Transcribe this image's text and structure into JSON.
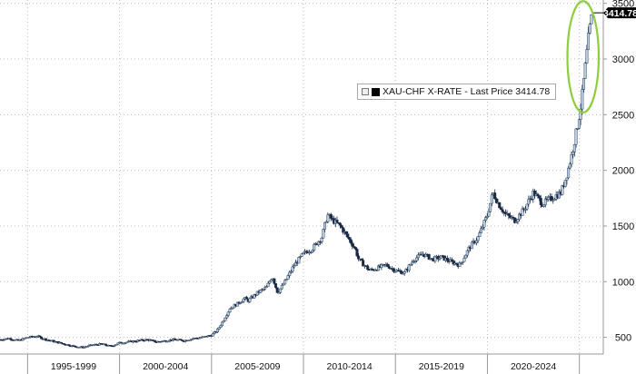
{
  "chart_data": {
    "type": "candlestick",
    "title": "",
    "xlabel": "",
    "ylabel": "",
    "x_range": [
      1993.5,
      2026.3
    ],
    "ylim": [
      350,
      3530
    ],
    "y_ticks": [
      500,
      1000,
      1500,
      2000,
      2500,
      3000,
      3500
    ],
    "y_tick_labels": [
      "500",
      "1000",
      "1500",
      "2000",
      "2500",
      "3000",
      "3500"
    ],
    "x_tick_labels": [
      "1995-1999",
      "2000-2004",
      "2005-2009",
      "2010-2014",
      "2015-2019",
      "2020-2024"
    ],
    "x_tick_spans": [
      [
        1995,
        2000
      ],
      [
        2000,
        2005
      ],
      [
        2005,
        2010
      ],
      [
        2010,
        2015
      ],
      [
        2015,
        2020
      ],
      [
        2020,
        2025
      ]
    ],
    "grid": true,
    "legend": {
      "position": "top-right",
      "label": "XAU-CHF X-RATE - Last Price 3414.78"
    },
    "last_price_label": "3414.78",
    "last_price": 3414.78,
    "highlight": {
      "type": "ellipse",
      "color": "#8fcd3c",
      "x_center": 2025.2,
      "y_center": 3020,
      "x_half_width": 0.85,
      "y_half_height": 500
    },
    "colors": {
      "up": "#b7cde0",
      "down": "#1a2a44",
      "grid": "#bbbbbb",
      "axis": "#999999",
      "text": "#111111"
    },
    "series": [
      {
        "name": "XAU-CHF X-RATE",
        "x": [
          1993.5,
          1994,
          1994.5,
          1995,
          1995.5,
          1996,
          1996.5,
          1997,
          1997.5,
          1998,
          1998.5,
          1999,
          1999.5,
          2000,
          2000.5,
          2001,
          2001.5,
          2002,
          2002.5,
          2003,
          2003.5,
          2004,
          2004.5,
          2005,
          2005.3,
          2005.6,
          2006,
          2006.4,
          2006.8,
          2007,
          2007.5,
          2008,
          2008.3,
          2008.6,
          2009,
          2009.5,
          2010,
          2010.5,
          2011,
          2011.3,
          2011.6,
          2012,
          2012.4,
          2012.8,
          2013,
          2013.3,
          2013.6,
          2014,
          2014.5,
          2015,
          2015.5,
          2016,
          2016.5,
          2017,
          2017.5,
          2018,
          2018.5,
          2019,
          2019.5,
          2020,
          2020.3,
          2020.6,
          2021,
          2021.5,
          2022,
          2022.5,
          2023,
          2023.5,
          2024,
          2024.3,
          2024.6,
          2024.9,
          2025.1,
          2025.3,
          2025.5,
          2025.7
        ],
        "close": [
          480,
          490,
          470,
          500,
          510,
          480,
          460,
          440,
          420,
          410,
          430,
          440,
          420,
          450,
          460,
          470,
          480,
          460,
          470,
          480,
          470,
          490,
          500,
          520,
          560,
          640,
          760,
          800,
          850,
          830,
          900,
          950,
          1050,
          900,
          1000,
          1150,
          1250,
          1300,
          1400,
          1600,
          1550,
          1500,
          1400,
          1300,
          1200,
          1150,
          1100,
          1120,
          1150,
          1100,
          1080,
          1200,
          1250,
          1200,
          1220,
          1180,
          1150,
          1300,
          1400,
          1600,
          1800,
          1700,
          1600,
          1550,
          1650,
          1800,
          1700,
          1750,
          1800,
          1950,
          2150,
          2400,
          2600,
          2900,
          3200,
          3414.78
        ]
      }
    ]
  }
}
